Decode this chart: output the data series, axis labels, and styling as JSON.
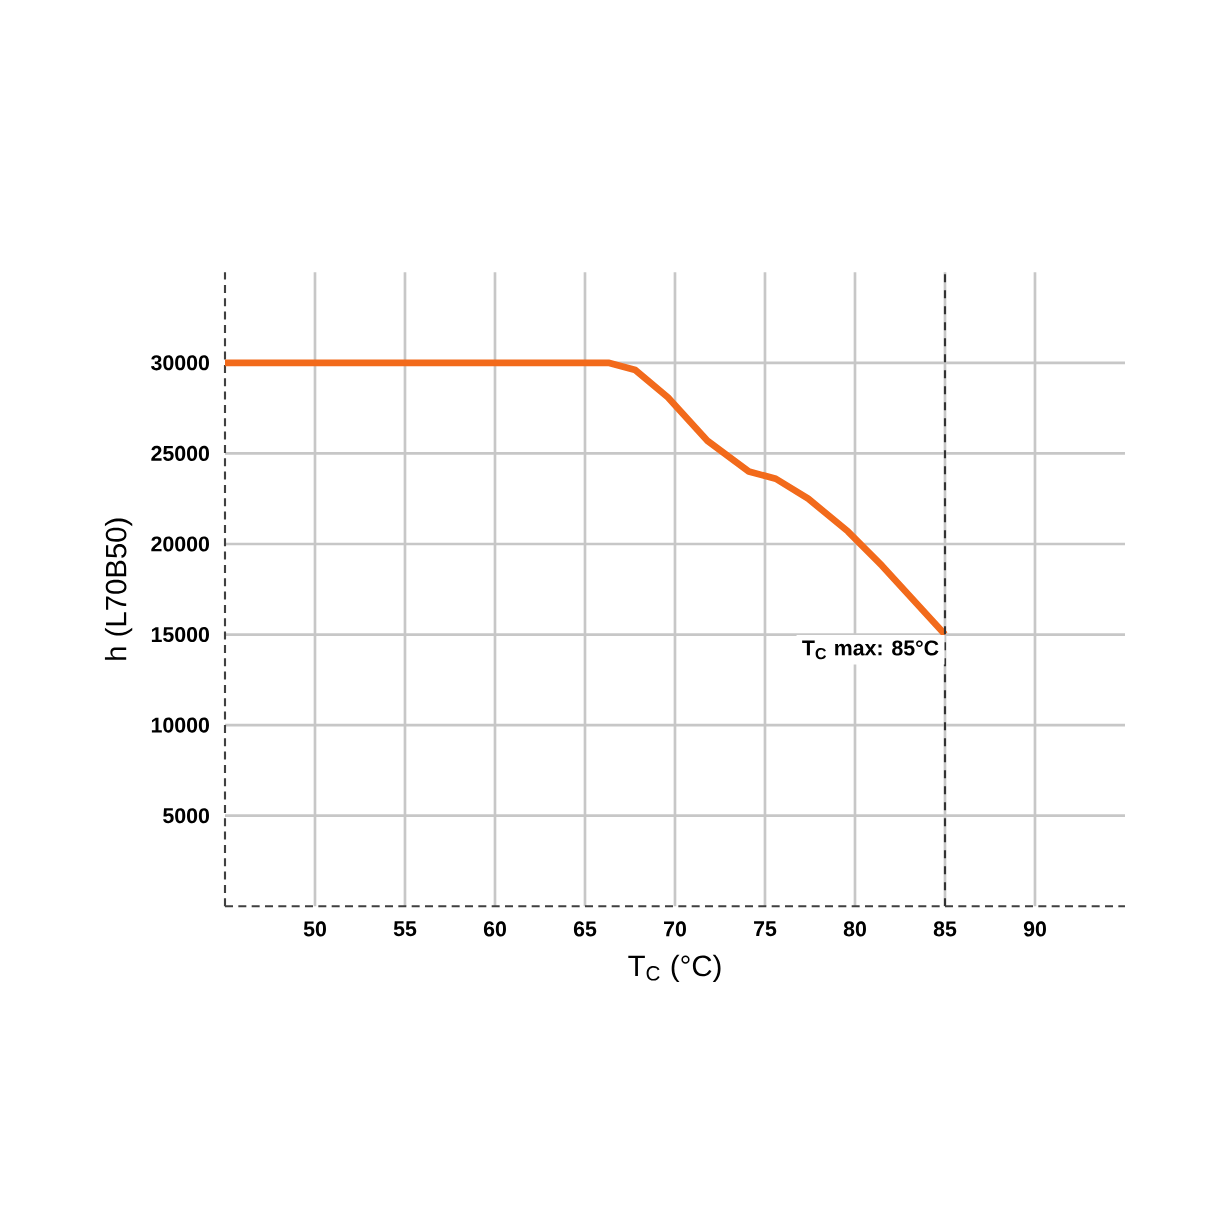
{
  "chart_data": {
    "type": "line",
    "xlabel": "T$_{C}$ (°C)",
    "ylabel": "h (L70B50)",
    "x": [
      45,
      66.3,
      67.8,
      69.6,
      71.8,
      74.1,
      75.6,
      77.4,
      79.6,
      81.5,
      85
    ],
    "series": [
      {
        "color": "#f26a1b",
        "values": [
          30000,
          30000,
          29600,
          28100,
          25700,
          24000,
          23600,
          22500,
          20700,
          18800,
          15000
        ]
      }
    ],
    "xlim": [
      45,
      95
    ],
    "ylim": [
      0,
      35000
    ],
    "xticks": [
      50,
      55,
      60,
      65,
      70,
      75,
      80,
      85,
      90
    ],
    "yticks": [
      5000,
      10000,
      15000,
      20000,
      25000,
      30000
    ],
    "grid": true,
    "marker": "none",
    "line_style": "solid",
    "ref_lines": [
      {
        "axis": "x",
        "value": 85,
        "color": "#333333",
        "line_style": "dashed"
      }
    ],
    "annotations": [
      {
        "text": "T$_{C}$ max: 85°C",
        "x": 85,
        "y": 15000
      }
    ]
  }
}
